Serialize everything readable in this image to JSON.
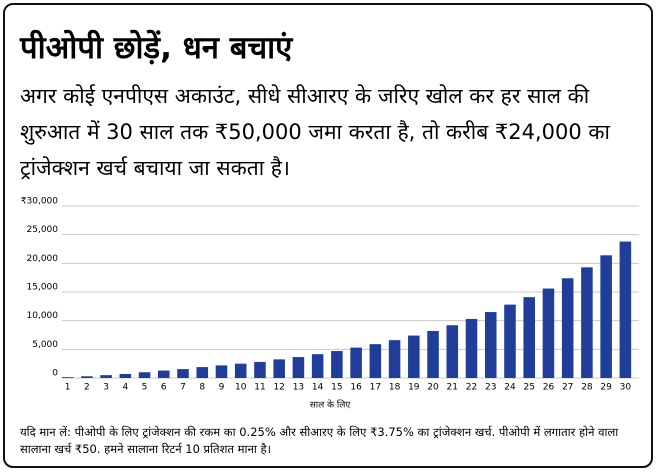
{
  "chart_data": {
    "type": "bar",
    "title": "पीओपी छोड़ें, धन बचाएं",
    "subtitle": "अगर कोई एनपीएस अकाउंट, सीधे सीआरए के जरिए खोल कर हर साल की शुरुआत में 30 साल तक ₹50,000 जमा करता है, तो करीब ₹24,000 का ट्रांजेक्शन खर्च बचाया जा सकता है।",
    "x_label": "साल के लिए",
    "note": "यदि मान लें: पीओपी के लिए ट्रांजेक्शन की रकम का 0.25% और सीआरए के लिए ₹3.75% का ट्रांजेक्शन खर्च. पीओपी में लगातार होने वाला सालाना खर्च ₹50. हमने सालाना रिटर्न 10 प्रतिशत माना है।",
    "categories": [
      "1",
      "2",
      "3",
      "4",
      "5",
      "6",
      "7",
      "8",
      "9",
      "10",
      "11",
      "12",
      "13",
      "14",
      "15",
      "16",
      "17",
      "18",
      "19",
      "20",
      "21",
      "22",
      "23",
      "24",
      "25",
      "26",
      "27",
      "28",
      "29",
      "30"
    ],
    "values": [
      150,
      300,
      500,
      700,
      1000,
      1300,
      1550,
      1900,
      2200,
      2500,
      2800,
      3250,
      3650,
      4150,
      4700,
      5300,
      5900,
      6600,
      7400,
      8200,
      9200,
      10300,
      11500,
      12800,
      14100,
      15600,
      17400,
      19300,
      21400,
      23800
    ],
    "color": "#1f3d99",
    "ylim": [
      0,
      30000
    ],
    "yticks": [
      0,
      {
        "value": 5000,
        "label": "5,000"
      },
      {
        "value": 10000,
        "label": "10,000"
      },
      {
        "value": 15000,
        "label": "15,000"
      },
      {
        "value": 20000,
        "label": "20,000"
      },
      {
        "value": 25000,
        "label": "25,000"
      },
      {
        "value": 30000,
        "label": "₹30,000"
      }
    ],
    "grid": true
  }
}
